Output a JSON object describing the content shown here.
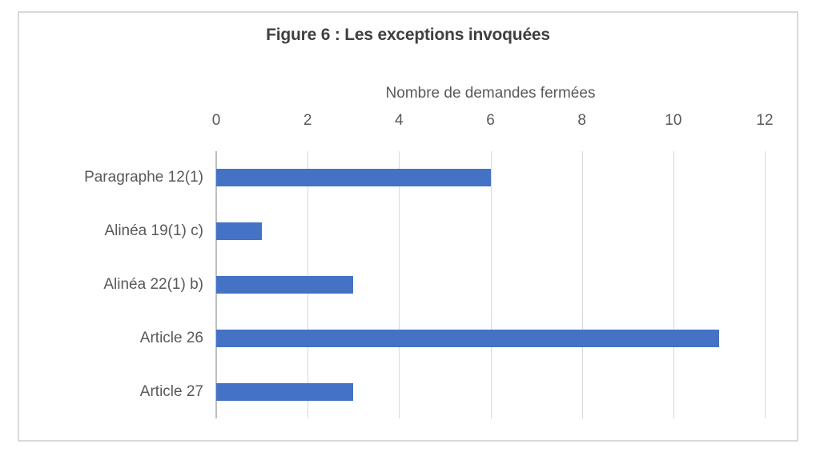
{
  "chart_data": {
    "type": "bar",
    "orientation": "horizontal",
    "title": "Figure 6 : Les exceptions invoquées",
    "xlabel": "Nombre de demandes fermées",
    "ylabel": "",
    "categories": [
      "Paragraphe 12(1)",
      "Alinéa 19(1) c)",
      "Alinéa 22(1) b)",
      "Article 26",
      "Article 27"
    ],
    "values": [
      6,
      1,
      3,
      11,
      3
    ],
    "xlim": [
      0,
      12
    ],
    "xticks": [
      0,
      2,
      4,
      6,
      8,
      10,
      12
    ],
    "grid": true,
    "legend": false,
    "colors": {
      "bar": "#4472C4",
      "title": "#404040",
      "axis_text": "#595959",
      "gridline": "#D9D9D9",
      "axis_line": "#BFBFBF",
      "frame_border": "#D9D9D9"
    }
  }
}
